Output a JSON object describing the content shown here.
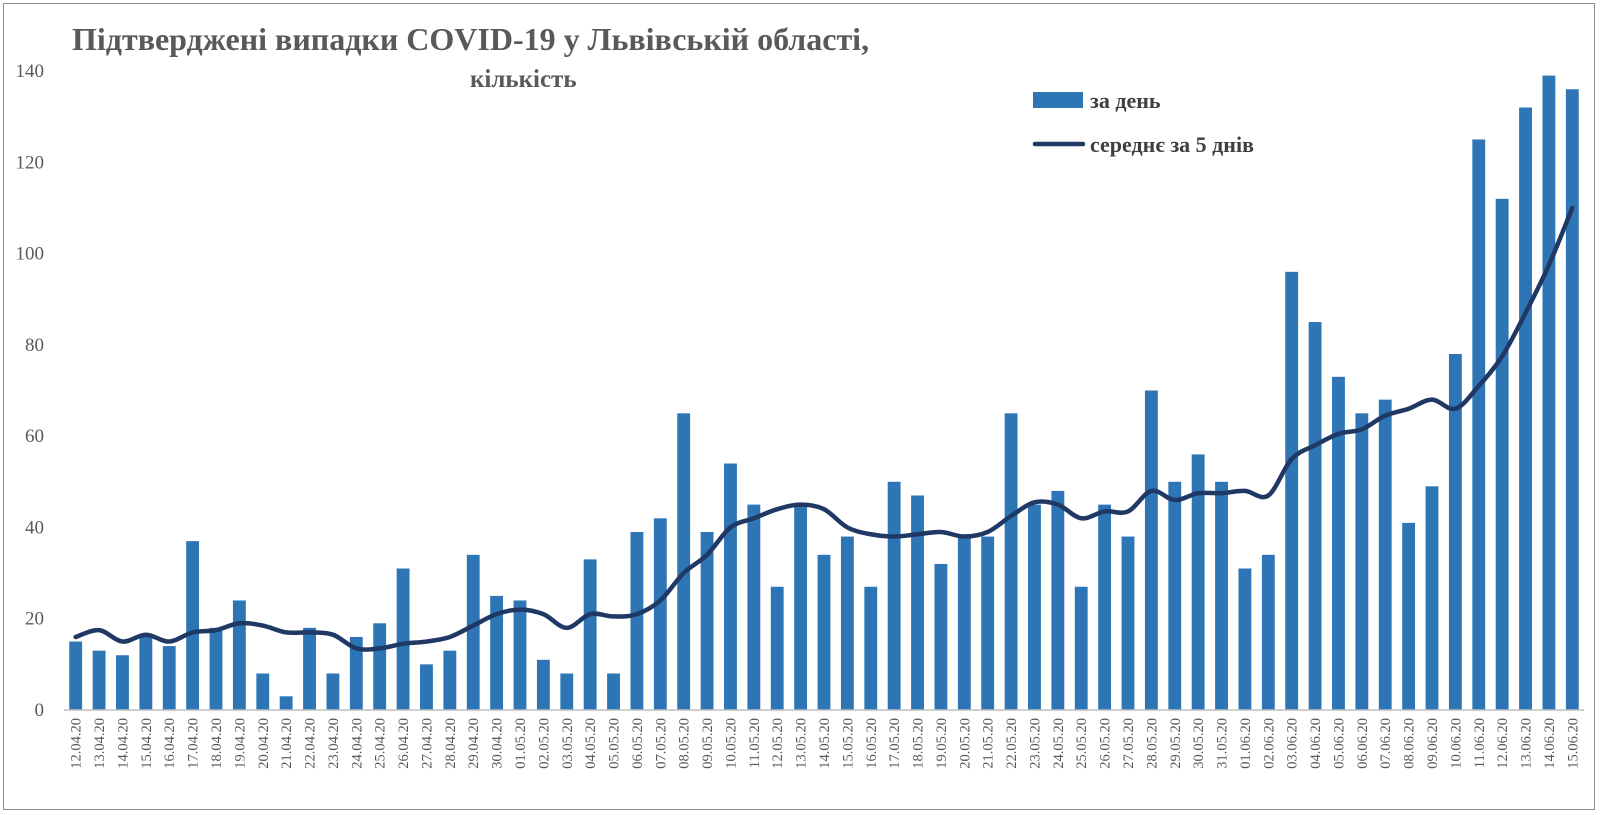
{
  "chart_data": {
    "type": "bar",
    "title": "Підтверджені випадки COVID-19 у Львівській області,",
    "subtitle": "кількість",
    "ylim": [
      0,
      140
    ],
    "yticks": [
      0,
      20,
      40,
      60,
      80,
      100,
      120,
      140
    ],
    "grid": false,
    "legend_position": "top-right",
    "categories": [
      "12.04.20",
      "13.04.20",
      "14.04.20",
      "15.04.20",
      "16.04.20",
      "17.04.20",
      "18.04.20",
      "19.04.20",
      "20.04.20",
      "21.04.20",
      "22.04.20",
      "23.04.20",
      "24.04.20",
      "25.04.20",
      "26.04.20",
      "27.04.20",
      "28.04.20",
      "29.04.20",
      "30.04.20",
      "01.05.20",
      "02.05.20",
      "03.05.20",
      "04.05.20",
      "05.05.20",
      "06.05.20",
      "07.05.20",
      "08.05.20",
      "09.05.20",
      "10.05.20",
      "11.05.20",
      "12.05.20",
      "13.05.20",
      "14.05.20",
      "15.05.20",
      "16.05.20",
      "17.05.20",
      "18.05.20",
      "19.05.20",
      "20.05.20",
      "21.05.20",
      "22.05.20",
      "23.05.20",
      "24.05.20",
      "25.05.20",
      "26.05.20",
      "27.05.20",
      "28.05.20",
      "29.05.20",
      "30.05.20",
      "31.05.20",
      "01.06.20",
      "02.06.20",
      "03.06.20",
      "04.06.20",
      "05.06.20",
      "06.06.20",
      "07.06.20",
      "08.06.20",
      "09.06.20",
      "10.06.20",
      "11.06.20",
      "12.06.20",
      "13.06.20",
      "14.06.20",
      "15.06.20"
    ],
    "series": [
      {
        "name": "за день",
        "kind": "bar",
        "color": "#2e75b6",
        "values": [
          15,
          13,
          12,
          16,
          14,
          37,
          18,
          24,
          8,
          3,
          18,
          8,
          16,
          19,
          31,
          10,
          13,
          34,
          25,
          24,
          11,
          8,
          33,
          8,
          39,
          42,
          65,
          39,
          54,
          45,
          27,
          45,
          34,
          38,
          27,
          50,
          47,
          32,
          38,
          38,
          65,
          45,
          48,
          27,
          45,
          38,
          70,
          50,
          56,
          50,
          31,
          34,
          96,
          85,
          73,
          65,
          68,
          41,
          49,
          78,
          125,
          112,
          132,
          139,
          136
        ]
      },
      {
        "name": "середнє за 5 днів",
        "kind": "line",
        "color": "#1f3864",
        "values": [
          16,
          17.5,
          15,
          16.5,
          15,
          17,
          17.5,
          19,
          18.5,
          17,
          17,
          16.5,
          13.5,
          13.5,
          14.5,
          15,
          16,
          18.5,
          21,
          22,
          21,
          18,
          21,
          20.5,
          21,
          24,
          30,
          34,
          40,
          42,
          44,
          45,
          44,
          40,
          38.5,
          38,
          38.5,
          39,
          38,
          39,
          42.5,
          45.5,
          45,
          42,
          43.5,
          43.5,
          48,
          46,
          47.5,
          47.5,
          48,
          47,
          55,
          58,
          60.5,
          61.5,
          64.5,
          66,
          68,
          66,
          71,
          77.5,
          87,
          97.5,
          110
        ]
      }
    ]
  }
}
